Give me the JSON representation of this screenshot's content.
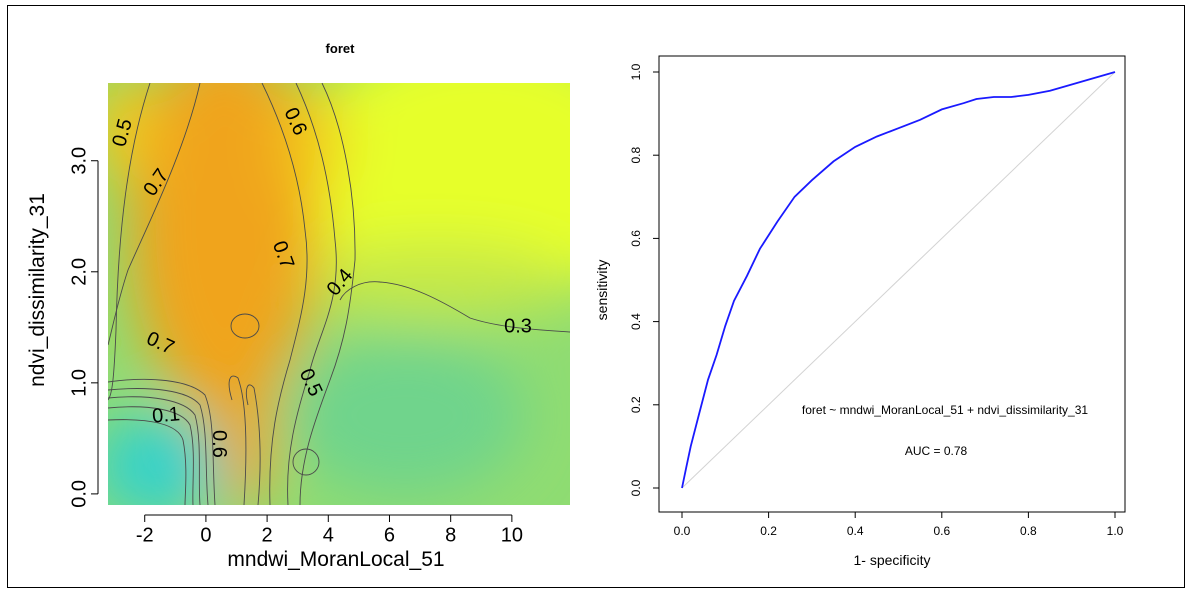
{
  "chart_data": [
    {
      "type": "heatmap",
      "title": "foret",
      "xlabel": "mndwi_MoranLocal_51",
      "ylabel": "ndvi_dissimilarity_31",
      "xlim": [
        -3.2,
        11.9
      ],
      "ylim": [
        -0.1,
        3.7
      ],
      "x_ticks": [
        -2,
        0,
        2,
        4,
        6,
        8,
        10
      ],
      "y_ticks": [
        0.0,
        1.0,
        2.0,
        3.0
      ],
      "x_tick_labels": [
        "-2",
        "0",
        "2",
        "4",
        "6",
        "8",
        "10"
      ],
      "y_tick_labels": [
        "0.0",
        "1.0",
        "2.0",
        "3.0"
      ],
      "contour_labels": [
        {
          "text": "0.5",
          "x": -2.7,
          "y": 3.25,
          "angle": -75
        },
        {
          "text": "0.6",
          "x": 2.9,
          "y": 3.35,
          "angle": 65
        },
        {
          "text": "0.7",
          "x": -1.6,
          "y": 2.8,
          "angle": -55
        },
        {
          "text": "0.7",
          "x": 2.5,
          "y": 2.15,
          "angle": 70
        },
        {
          "text": "0.4",
          "x": 4.4,
          "y": 1.9,
          "angle": -50
        },
        {
          "text": "0.3",
          "x": 10.2,
          "y": 1.5,
          "angle": 0
        },
        {
          "text": "0.7",
          "x": -1.5,
          "y": 1.35,
          "angle": 25
        },
        {
          "text": "0.5",
          "x": 3.4,
          "y": 1.0,
          "angle": 65
        },
        {
          "text": "0.1",
          "x": -1.3,
          "y": 0.7,
          "angle": -5
        },
        {
          "text": "0.6",
          "x": 0.4,
          "y": 0.45,
          "angle": 90
        }
      ],
      "colors": {
        "low": "#39d2c9",
        "mid": "#8fdc72",
        "high": "#f0a41a",
        "top": "#e6ff2a"
      }
    },
    {
      "type": "line",
      "xlabel": "1- specificity",
      "ylabel": "sensitivity",
      "xlim": [
        0,
        1
      ],
      "ylim": [
        0,
        1
      ],
      "ticks": [
        0.0,
        0.2,
        0.4,
        0.6,
        0.8,
        1.0
      ],
      "tick_labels": [
        "0.0",
        "0.2",
        "0.4",
        "0.6",
        "0.8",
        "1.0"
      ],
      "series": [
        {
          "color": "#1a1aff",
          "x": [
            0,
            0.01,
            0.02,
            0.04,
            0.06,
            0.08,
            0.1,
            0.12,
            0.15,
            0.18,
            0.22,
            0.26,
            0.3,
            0.35,
            0.4,
            0.45,
            0.5,
            0.55,
            0.6,
            0.65,
            0.68,
            0.72,
            0.76,
            0.8,
            0.85,
            0.9,
            0.95,
            1.0
          ],
          "y": [
            0,
            0.05,
            0.1,
            0.18,
            0.26,
            0.32,
            0.39,
            0.45,
            0.51,
            0.575,
            0.64,
            0.7,
            0.74,
            0.785,
            0.82,
            0.845,
            0.865,
            0.885,
            0.91,
            0.925,
            0.935,
            0.94,
            0.94,
            0.945,
            0.955,
            0.97,
            0.985,
            1.0
          ]
        }
      ],
      "diagonal_color": "#d3d3d3",
      "annotations": {
        "formula": "foret ~ mndwi_MoranLocal_51 + ndvi_dissimilarity_31",
        "auc": "AUC = 0.78"
      }
    }
  ]
}
